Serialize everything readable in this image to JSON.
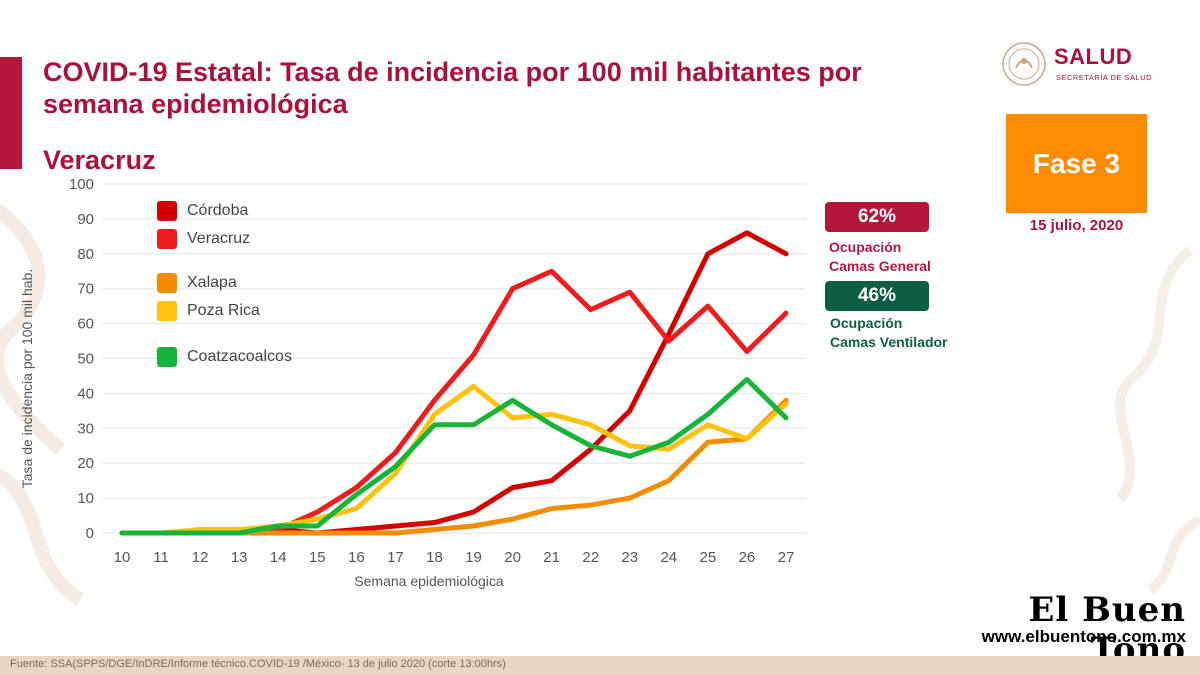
{
  "header": {
    "title": "COVID-19 Estatal: Tasa de incidencia por 100 mil habitantes por semana epidemiológica",
    "subtitle": "Veracruz"
  },
  "logo": {
    "name": "SALUD",
    "sub": "SECRETARÍA DE SALUD"
  },
  "phase": {
    "label": "Fase 3",
    "date": "15 julio, 2020",
    "color": "#ff8c00"
  },
  "occupancy": {
    "general": {
      "value": "62%",
      "label_line1": "Ocupación",
      "label_line2": "Camas General",
      "color": "#b5173c"
    },
    "ventilator": {
      "value": "46%",
      "label_line1": "Ocupación",
      "label_line2": "Camas Ventilador",
      "color": "#0d5e45"
    }
  },
  "chart_data": {
    "type": "line",
    "xlabel": "Semana epidemiológica",
    "ylabel": "Tasa de incidencia por 100 mil hab.",
    "x": [
      10,
      11,
      12,
      13,
      14,
      15,
      16,
      17,
      18,
      19,
      20,
      21,
      22,
      23,
      24,
      25,
      26,
      27
    ],
    "ylim": [
      0,
      100
    ],
    "yticks": [
      0,
      10,
      20,
      30,
      40,
      50,
      60,
      70,
      80,
      90,
      100
    ],
    "grid": true,
    "legend_position": "top-left",
    "series": [
      {
        "name": "Córdoba",
        "color": "#d40000",
        "values": [
          0,
          0,
          0,
          0,
          1,
          0,
          1,
          2,
          3,
          6,
          13,
          15,
          24,
          35,
          57,
          80,
          86,
          80
        ]
      },
      {
        "name": "Veracruz",
        "color": "#ee1c1c",
        "values": [
          0,
          0,
          0,
          0,
          1,
          6,
          13,
          23,
          38,
          51,
          70,
          75,
          64,
          69,
          55,
          65,
          52,
          63
        ]
      },
      {
        "name": "Xalapa",
        "color": "#f28c00",
        "values": [
          0,
          0,
          0,
          0,
          0,
          0,
          0,
          0,
          1,
          2,
          4,
          7,
          8,
          10,
          15,
          26,
          27,
          38
        ]
      },
      {
        "name": "Poza Rica",
        "color": "#ffc20e",
        "values": [
          0,
          0,
          1,
          1,
          2,
          4,
          7,
          17,
          34,
          42,
          33,
          34,
          31,
          25,
          24,
          31,
          27,
          37
        ]
      },
      {
        "name": "Coatzacoalcos",
        "color": "#17b43a",
        "values": [
          0,
          0,
          0,
          0,
          2,
          2,
          11,
          19,
          31,
          31,
          38,
          31,
          25,
          22,
          26,
          34,
          44,
          33
        ]
      }
    ]
  },
  "brand": {
    "name": "El Buen Tono",
    "url": "www.elbuentono.com.mx"
  },
  "footer": {
    "source": "Fuente: SSA(SPPS/DGE/InDRE/Informe técnico.COVID-19 /México- 13 de julio 2020 (corte 13:00hrs)"
  }
}
